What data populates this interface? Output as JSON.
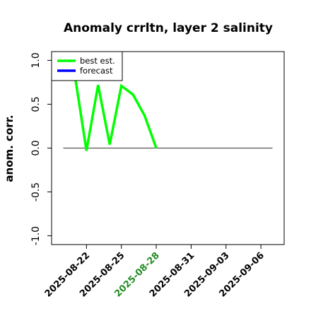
{
  "chart_data": {
    "type": "line",
    "title": "Anomaly crrltn, layer 2 salinity",
    "xlabel": "",
    "ylabel": "anom. corr.",
    "ylim": [
      -1.0,
      1.0
    ],
    "yticks": [
      "-1.0",
      "-0.5",
      "0.0",
      "0.5",
      "1.0"
    ],
    "ytick_values": [
      -1.0,
      -0.5,
      0.0,
      0.5,
      1.0
    ],
    "xlim": [
      "2025-08-19",
      "2025-09-08"
    ],
    "xticks": [
      "2025-08-22",
      "2025-08-25",
      "2025-08-28",
      "2025-08-31",
      "2025-09-03",
      "2025-09-06"
    ],
    "highlighted_xtick": "2025-08-28",
    "highlight_color": "#228B22",
    "grid": false,
    "legend_position": "top-left",
    "series": [
      {
        "name": "best est.",
        "color": "#00ff00",
        "x": [
          "2025-08-21",
          "2025-08-22",
          "2025-08-23",
          "2025-08-24",
          "2025-08-25",
          "2025-08-26",
          "2025-08-27",
          "2025-08-28"
        ],
        "values": [
          0.83,
          -0.03,
          0.72,
          0.04,
          0.71,
          0.61,
          0.37,
          0.0
        ]
      },
      {
        "name": "forecast",
        "color": "#0000ff",
        "x": [],
        "values": []
      }
    ],
    "reference_line": {
      "y": 0.0,
      "x_range": [
        "2025-08-20",
        "2025-09-07"
      ],
      "color": "#555555"
    }
  }
}
